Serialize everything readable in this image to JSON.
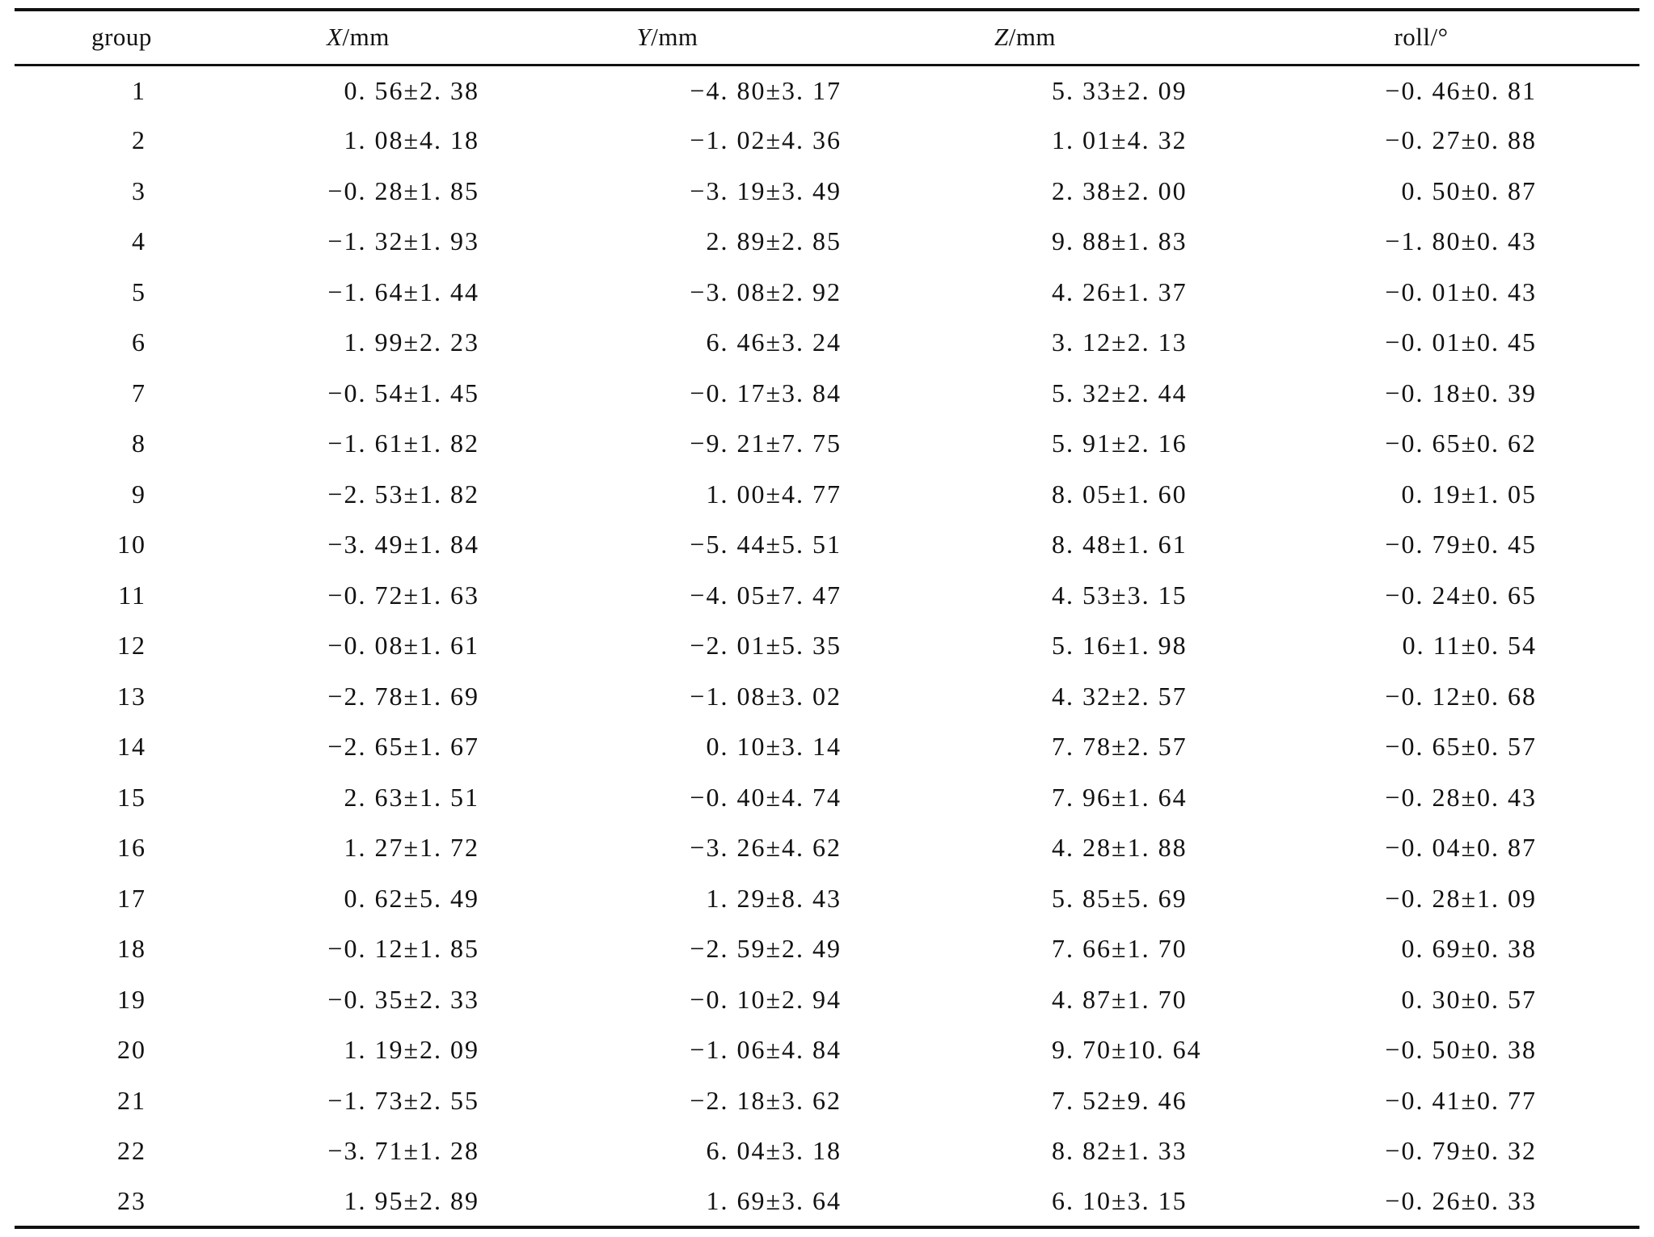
{
  "table": {
    "headers": {
      "group": "group",
      "x_var": "X",
      "x_unit": "/mm",
      "y_var": "Y",
      "y_unit": "/mm",
      "z_var": "Z",
      "z_unit": "/mm",
      "roll": "roll/°"
    },
    "rows": [
      {
        "group": "1",
        "x": "0. 56±2. 38",
        "y": "−4. 80±3. 17",
        "z": "5. 33±2. 09",
        "roll": "−0. 46±0. 81"
      },
      {
        "group": "2",
        "x": "1. 08±4. 18",
        "y": "−1. 02±4. 36",
        "z": "1. 01±4. 32",
        "roll": "−0. 27±0. 88"
      },
      {
        "group": "3",
        "x": "−0. 28±1. 85",
        "y": "−3. 19±3. 49",
        "z": "2. 38±2. 00",
        "roll": "0. 50±0. 87"
      },
      {
        "group": "4",
        "x": "−1. 32±1. 93",
        "y": "2. 89±2. 85",
        "z": "9. 88±1. 83",
        "roll": "−1. 80±0. 43"
      },
      {
        "group": "5",
        "x": "−1. 64±1. 44",
        "y": "−3. 08±2. 92",
        "z": "4. 26±1. 37",
        "roll": "−0. 01±0. 43"
      },
      {
        "group": "6",
        "x": "1. 99±2. 23",
        "y": "6. 46±3. 24",
        "z": "3. 12±2. 13",
        "roll": "−0. 01±0. 45"
      },
      {
        "group": "7",
        "x": "−0. 54±1. 45",
        "y": "−0. 17±3. 84",
        "z": "5. 32±2. 44",
        "roll": "−0. 18±0. 39"
      },
      {
        "group": "8",
        "x": "−1. 61±1. 82",
        "y": "−9. 21±7. 75",
        "z": "5. 91±2. 16",
        "roll": "−0. 65±0. 62"
      },
      {
        "group": "9",
        "x": "−2. 53±1. 82",
        "y": "1. 00±4. 77",
        "z": "8. 05±1. 60",
        "roll": "0. 19±1. 05"
      },
      {
        "group": "10",
        "x": "−3. 49±1. 84",
        "y": "−5. 44±5. 51",
        "z": "8. 48±1. 61",
        "roll": "−0. 79±0. 45"
      },
      {
        "group": "11",
        "x": "−0. 72±1. 63",
        "y": "−4. 05±7. 47",
        "z": "4. 53±3. 15",
        "roll": "−0. 24±0. 65"
      },
      {
        "group": "12",
        "x": "−0. 08±1. 61",
        "y": "−2. 01±5. 35",
        "z": "5. 16±1. 98",
        "roll": "0. 11±0. 54"
      },
      {
        "group": "13",
        "x": "−2. 78±1. 69",
        "y": "−1. 08±3. 02",
        "z": "4. 32±2. 57",
        "roll": "−0. 12±0. 68"
      },
      {
        "group": "14",
        "x": "−2. 65±1. 67",
        "y": "0. 10±3. 14",
        "z": "7. 78±2. 57",
        "roll": "−0. 65±0. 57"
      },
      {
        "group": "15",
        "x": "2. 63±1. 51",
        "y": "−0. 40±4. 74",
        "z": "7. 96±1. 64",
        "roll": "−0. 28±0. 43"
      },
      {
        "group": "16",
        "x": "1. 27±1. 72",
        "y": "−3. 26±4. 62",
        "z": "4. 28±1. 88",
        "roll": "−0. 04±0. 87"
      },
      {
        "group": "17",
        "x": "0. 62±5. 49",
        "y": "1. 29±8. 43",
        "z": "5. 85±5. 69",
        "roll": "−0. 28±1. 09"
      },
      {
        "group": "18",
        "x": "−0. 12±1. 85",
        "y": "−2. 59±2. 49",
        "z": "7. 66±1. 70",
        "roll": "0. 69±0. 38"
      },
      {
        "group": "19",
        "x": "−0. 35±2. 33",
        "y": "−0. 10±2. 94",
        "z": "4. 87±1. 70",
        "roll": "0. 30±0. 57"
      },
      {
        "group": "20",
        "x": "1. 19±2. 09",
        "y": "−1. 06±4. 84",
        "z": "9. 70±10. 64",
        "roll": "−0. 50±0. 38"
      },
      {
        "group": "21",
        "x": "−1. 73±2. 55",
        "y": "−2. 18±3. 62",
        "z": "7. 52±9. 46",
        "roll": "−0. 41±0. 77"
      },
      {
        "group": "22",
        "x": "−3. 71±1. 28",
        "y": "6. 04±3. 18",
        "z": "8. 82±1. 33",
        "roll": "−0. 79±0. 32"
      },
      {
        "group": "23",
        "x": "1. 95±2. 89",
        "y": "1. 69±3. 64",
        "z": "6. 10±3. 15",
        "roll": "−0. 26±0. 33"
      }
    ]
  }
}
